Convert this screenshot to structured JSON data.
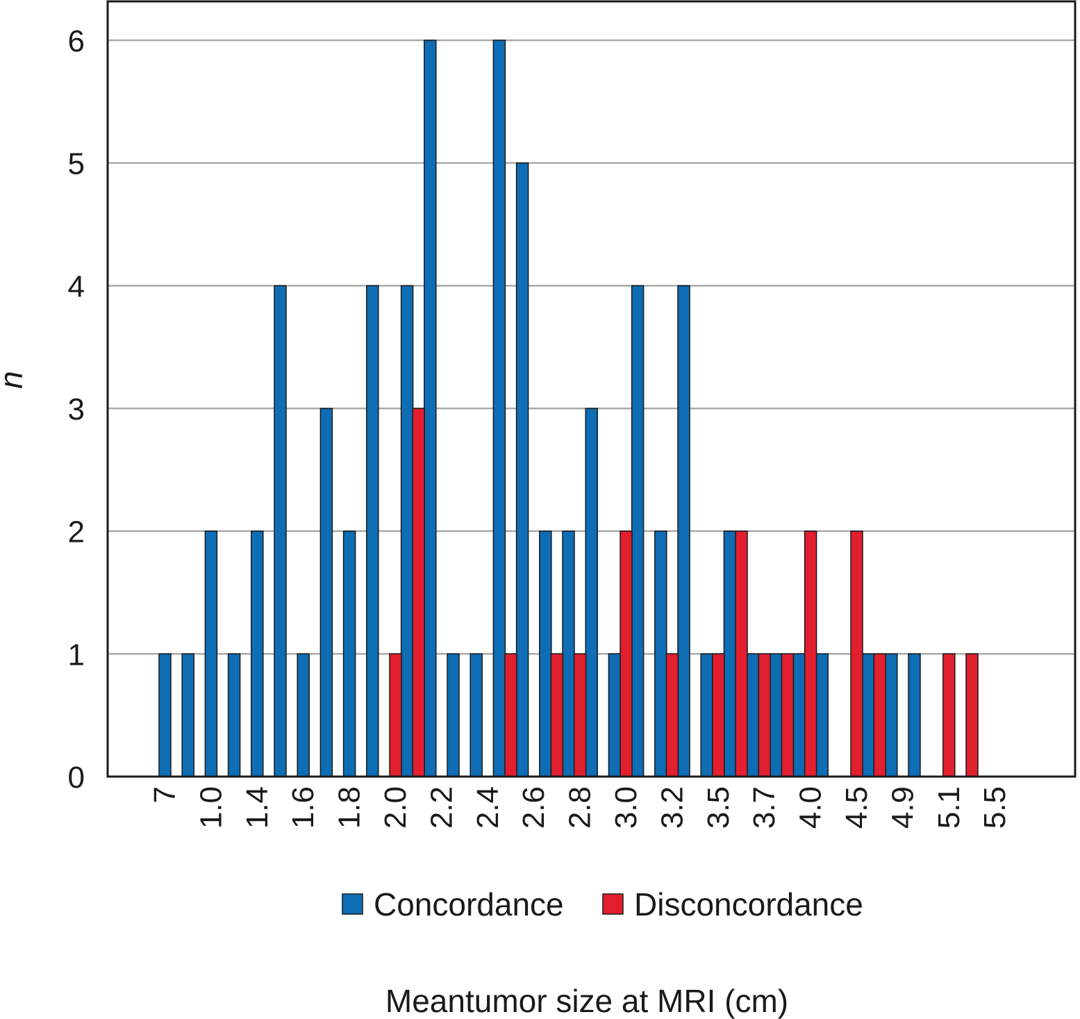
{
  "chart_data": {
    "type": "bar",
    "xlabel": "Meantumor size at MRI (cm)",
    "ylabel": "n",
    "ylim": [
      0,
      6
    ],
    "yticks": [
      "0",
      "1",
      "2",
      "3",
      "4",
      "5",
      "6"
    ],
    "grid": true,
    "legend_position": "bottom",
    "colors": {
      "concordance": "#0e6db5",
      "disconcordance": "#e21f2e",
      "grid": "#a9a9a9",
      "axis": "#1a1a1a"
    },
    "xtick_labels": [
      "7",
      "1.0",
      "1.4",
      "1.6",
      "1.8",
      "2.0",
      "2.2",
      "2.4",
      "2.6",
      "2.8",
      "3.0",
      "3.2",
      "3.5",
      "3.7",
      "4.0",
      "4.5",
      "4.9",
      "5.1",
      "5.5"
    ],
    "series": [
      {
        "name": "Concordance",
        "bars": [
          {
            "slot": 0,
            "value": 1
          },
          {
            "slot": 1,
            "value": 1
          },
          {
            "slot": 2,
            "value": 2
          },
          {
            "slot": 3,
            "value": 1
          },
          {
            "slot": 4,
            "value": 2
          },
          {
            "slot": 5,
            "value": 4
          },
          {
            "slot": 6,
            "value": 1
          },
          {
            "slot": 7,
            "value": 3
          },
          {
            "slot": 8,
            "value": 2
          },
          {
            "slot": 9,
            "value": 4
          },
          {
            "slot": 10.5,
            "value": 4
          },
          {
            "slot": 11.5,
            "value": 6
          },
          {
            "slot": 12.5,
            "value": 1
          },
          {
            "slot": 13.5,
            "value": 1
          },
          {
            "slot": 14.5,
            "value": 6
          },
          {
            "slot": 15.5,
            "value": 5
          },
          {
            "slot": 16.5,
            "value": 2
          },
          {
            "slot": 17.5,
            "value": 2
          },
          {
            "slot": 18.5,
            "value": 3
          },
          {
            "slot": 19.5,
            "value": 1
          },
          {
            "slot": 20.5,
            "value": 4
          },
          {
            "slot": 21.5,
            "value": 2
          },
          {
            "slot": 22.5,
            "value": 4
          },
          {
            "slot": 23.5,
            "value": 1
          },
          {
            "slot": 24.5,
            "value": 2
          },
          {
            "slot": 25.5,
            "value": 1
          },
          {
            "slot": 26.5,
            "value": 1
          },
          {
            "slot": 27.5,
            "value": 1
          },
          {
            "slot": 28.5,
            "value": 1
          },
          {
            "slot": 30.5,
            "value": 1
          },
          {
            "slot": 31.5,
            "value": 1
          },
          {
            "slot": 32.5,
            "value": 1
          }
        ]
      },
      {
        "name": "Disconcordance",
        "bars": [
          {
            "slot": 10,
            "value": 1
          },
          {
            "slot": 11,
            "value": 3
          },
          {
            "slot": 15,
            "value": 1
          },
          {
            "slot": 17,
            "value": 1
          },
          {
            "slot": 18,
            "value": 1
          },
          {
            "slot": 20,
            "value": 2
          },
          {
            "slot": 22,
            "value": 1
          },
          {
            "slot": 24,
            "value": 1
          },
          {
            "slot": 25,
            "value": 2
          },
          {
            "slot": 26,
            "value": 1
          },
          {
            "slot": 27,
            "value": 1
          },
          {
            "slot": 28,
            "value": 2
          },
          {
            "slot": 30,
            "value": 2
          },
          {
            "slot": 31,
            "value": 1
          },
          {
            "slot": 34,
            "value": 1
          },
          {
            "slot": 35,
            "value": 1
          }
        ]
      }
    ]
  }
}
